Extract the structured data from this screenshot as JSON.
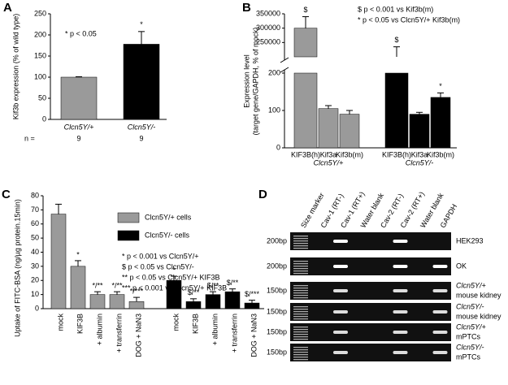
{
  "chart_data": [
    {
      "type": "bar",
      "panel_label": "A",
      "y_label": "Kif3b expression (% of wild type)",
      "categories": [
        "Clcn5Y/+",
        "Clcn5Y/-"
      ],
      "values": [
        100,
        178
      ],
      "errors": [
        1,
        30
      ],
      "colors": [
        "#9a9a9a",
        "#000000"
      ],
      "bar_annotations": [
        null,
        "*"
      ],
      "annotation": "* p < 0.05",
      "n_label": "n =",
      "n_values": [
        9,
        9
      ],
      "ylim": [
        0,
        250
      ],
      "yticks": [
        0,
        50,
        100,
        150,
        200,
        250
      ]
    },
    {
      "type": "broken-bar",
      "panel_label": "B",
      "y_label": [
        "Expression level",
        "(target gene/GAPDH, % of mock)"
      ],
      "categories": [
        "KIF3B(h)",
        "Kif3a",
        "Kif3b(m)"
      ],
      "series": [
        {
          "name": "Clcn5Y/+",
          "color": "#9a9a9a",
          "values": [
            300000,
            105,
            90
          ],
          "errors": [
            40000,
            8,
            10
          ],
          "bar_annotations": [
            "$",
            null,
            null
          ]
        },
        {
          "name": "Clcn5Y/-",
          "color": "#000000",
          "values": [
            200000,
            90,
            135
          ],
          "errors": [
            35000,
            5,
            12
          ],
          "bar_annotations": [
            "$",
            null,
            "*"
          ]
        }
      ],
      "notes": [
        "$ p < 0.001 vs Kif3b(m)",
        "* p < 0.05 vs Clcn5Y/+ Kif3b(m)"
      ],
      "ylim_lower": [
        0,
        200
      ],
      "ylim_upper": [
        200000,
        350000
      ],
      "yticks": [
        0,
        100,
        200,
        250000,
        300000,
        350000
      ]
    },
    {
      "type": "bar",
      "panel_label": "C",
      "y_label": "Uptake of FITC-BSA (ng/µg protein.15min)",
      "categories": [
        "mock",
        "KIF3B",
        "+ albumin",
        "+ transferrin",
        "DOG + NaN3"
      ],
      "series": [
        {
          "name": "Clcn5Y/+ cells",
          "color": "#9a9a9a",
          "values": [
            67,
            30,
            10,
            10,
            5
          ],
          "errors": [
            7,
            4,
            2,
            2,
            3
          ],
          "bar_annotations": [
            null,
            "*",
            "*/**",
            "*/**",
            "*/***"
          ]
        },
        {
          "name": "Clcn5Y/- cells",
          "color": "#000000",
          "values": [
            20,
            5,
            10,
            12,
            4
          ],
          "errors": [
            3,
            2,
            2,
            2,
            2
          ],
          "bar_annotations": [
            "*",
            "$/**",
            "$/**",
            "$/**",
            "$/***"
          ]
        }
      ],
      "notes": [
        "* p < 0.001 vs Clcn5Y/+",
        "$ p < 0.05 vs Clcn5Y/-",
        "** p < 0.05 vs Clcn5Y/+ KIF3B",
        "*** p < 0.001 vs Clcn5Y/+ KIF3B"
      ],
      "ylim": [
        0,
        80
      ],
      "yticks": [
        0,
        10,
        20,
        30,
        40,
        50,
        60,
        70,
        80
      ]
    }
  ],
  "gel": {
    "panel_label": "D",
    "lanes": [
      "Size marker",
      "Cav-1 (RT-)",
      "Cav-1 (RT+)",
      "Water blank",
      "Cav-2 (RT-)",
      "Cav-2 (RT+)",
      "Water blank",
      "GAPDH"
    ],
    "rows": [
      {
        "size": "200bp",
        "label": [
          "HEK293"
        ]
      },
      {
        "size": "200bp",
        "label": [
          "OK"
        ]
      },
      {
        "size": "150bp",
        "label": [
          "Clcn5Y/+",
          "mouse kidney"
        ]
      },
      {
        "size": "150bp",
        "label": [
          "Clcn5Y/-",
          "mouse kidney"
        ]
      },
      {
        "size": "150bp",
        "label": [
          "Clcn5Y/+",
          "mPTCs"
        ]
      },
      {
        "size": "150bp",
        "label": [
          "Clcn5Y/-",
          "mPTCs"
        ]
      }
    ]
  }
}
